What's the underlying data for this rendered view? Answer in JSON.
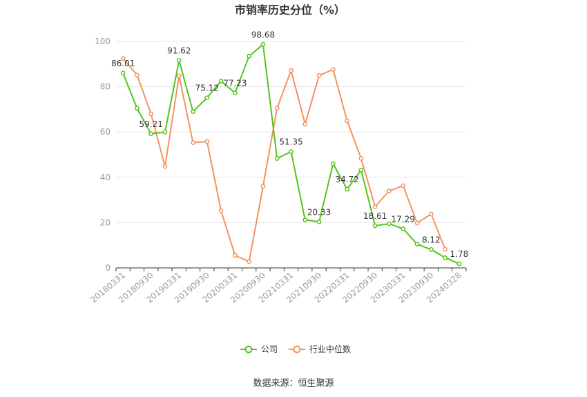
{
  "chart_data": {
    "type": "line",
    "title": "市销率历史分位（%）",
    "ylim": [
      0,
      100
    ],
    "yticks": [
      0,
      20,
      40,
      60,
      80,
      100
    ],
    "grid": true,
    "legend_position": "bottom",
    "x": [
      "20180331",
      "20180630",
      "20180930",
      "20181231",
      "20190331",
      "20190630",
      "20190930",
      "20191231",
      "20200331",
      "20200630",
      "20200930",
      "20201231",
      "20210331",
      "20210630",
      "20210930",
      "20211231",
      "20220331",
      "20220630",
      "20220930",
      "20221231",
      "20230331",
      "20230630",
      "20230930",
      "20231231",
      "20240328"
    ],
    "xtick_labels": [
      "20180331",
      "20180930",
      "20190331",
      "20190930",
      "20200331",
      "20200930",
      "20210331",
      "20210930",
      "20220331",
      "20220930",
      "20230331",
      "20230930",
      "20240328"
    ],
    "series": [
      {
        "name": "公司",
        "color": "#52c41a",
        "values": [
          86.01,
          70.5,
          59.21,
          60.0,
          91.62,
          69.0,
          75.12,
          82.5,
          77.23,
          93.5,
          98.68,
          48.3,
          51.35,
          21.2,
          20.33,
          46.0,
          34.72,
          43.2,
          18.61,
          19.5,
          17.29,
          10.5,
          8.12,
          4.5,
          1.78
        ]
      },
      {
        "name": "行业中位数",
        "color": "#f4925e",
        "values": [
          92.5,
          85.2,
          68.0,
          44.8,
          84.8,
          55.3,
          55.8,
          25.2,
          5.5,
          2.8,
          36.0,
          70.5,
          87.2,
          63.5,
          85.0,
          87.6,
          65.0,
          48.3,
          27.0,
          34.0,
          36.3,
          19.8,
          23.8,
          8.2,
          null
        ]
      }
    ],
    "data_labels": [
      {
        "series": 0,
        "index": 0,
        "text": "86.01"
      },
      {
        "series": 0,
        "index": 2,
        "text": "59.21"
      },
      {
        "series": 0,
        "index": 4,
        "text": "91.62"
      },
      {
        "series": 0,
        "index": 6,
        "text": "75.12"
      },
      {
        "series": 0,
        "index": 8,
        "text": "77.23"
      },
      {
        "series": 0,
        "index": 10,
        "text": "98.68"
      },
      {
        "series": 0,
        "index": 12,
        "text": "51.35"
      },
      {
        "series": 0,
        "index": 14,
        "text": "20.33"
      },
      {
        "series": 0,
        "index": 16,
        "text": "34.72"
      },
      {
        "series": 0,
        "index": 18,
        "text": "18.61"
      },
      {
        "series": 0,
        "index": 20,
        "text": "17.29"
      },
      {
        "series": 0,
        "index": 22,
        "text": "8.12"
      },
      {
        "series": 0,
        "index": 24,
        "text": "1.78"
      }
    ],
    "source": "数据来源：恒生聚源"
  }
}
